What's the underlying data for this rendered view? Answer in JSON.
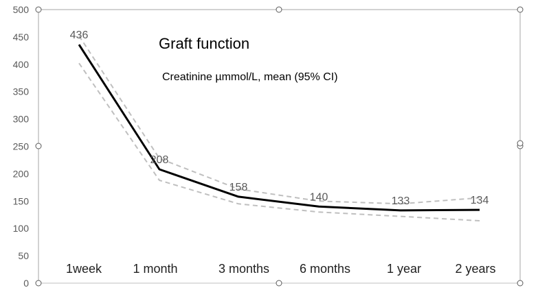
{
  "chart_data": {
    "type": "line",
    "title": "Graft function",
    "subtitle": "Creatinine µmmol/L, mean (95% CI)",
    "categories": [
      "1week",
      "1 month",
      "3 months",
      "6 months",
      "1 year",
      "2 years"
    ],
    "ylim": [
      0,
      500
    ],
    "yticks": [
      0,
      50,
      100,
      150,
      200,
      250,
      300,
      350,
      400,
      450,
      500
    ],
    "series": [
      {
        "values": [
          436,
          208,
          158,
          140,
          133,
          134
        ],
        "color": "#000000",
        "style": "solid",
        "labels": true
      },
      {
        "values": [
          452,
          228,
          172,
          150,
          145,
          156
        ],
        "color": "#bfbfbf",
        "style": "dashed"
      },
      {
        "values": [
          402,
          188,
          145,
          130,
          122,
          114
        ],
        "color": "#bfbfbf",
        "style": "dashed"
      }
    ],
    "grid": false,
    "legend": "none"
  }
}
